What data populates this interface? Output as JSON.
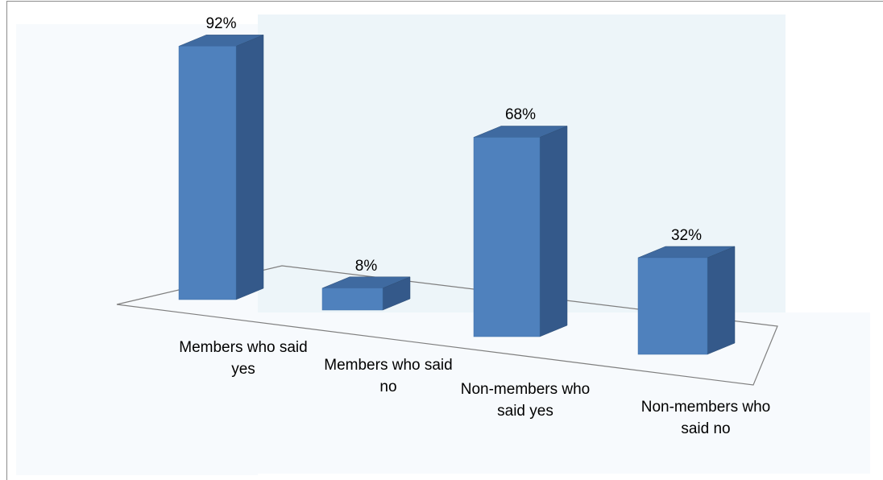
{
  "chart_data": {
    "type": "bar",
    "categories": [
      "Members who said yes",
      "Members who said no",
      "Non-members who said yes",
      "Non-members who said no"
    ],
    "values": [
      92,
      8,
      68,
      32
    ],
    "value_labels": [
      "92%",
      "8%",
      "68%",
      "32%"
    ],
    "color": "#4f81bd"
  }
}
